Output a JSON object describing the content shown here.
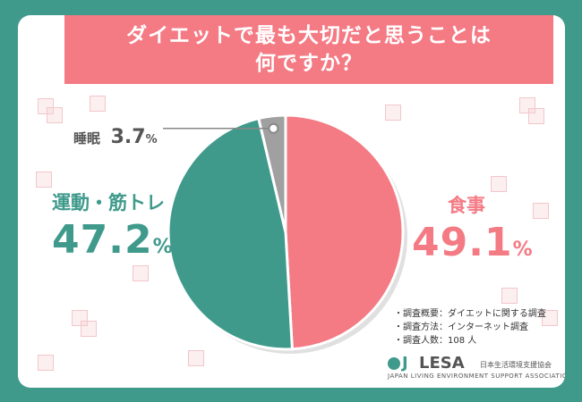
{
  "title": "ダイエットで最も大切だと思うことは\n何ですか？",
  "chart_data": {
    "type": "pie",
    "slices": [
      {
        "name": "食事",
        "value": 49.1,
        "color": "#f47a84"
      },
      {
        "name": "運動・筋トレ",
        "value": 47.2,
        "color": "#3f9a8c"
      },
      {
        "name": "睡眠",
        "value": 3.7,
        "color": "#a0a0a0"
      }
    ],
    "value_suffix": "%"
  },
  "notes": [
    "・調査概要：ダイエットに関する調査",
    "・調査方法：インターネット調査",
    "・調査人数：108 人"
  ],
  "logo": {
    "j": "J",
    "name": "LESA",
    "jp": "日本生活環境支援協会",
    "en": "JAPAN LIVING ENVIRONMENT SUPPORT ASSOCIATION"
  },
  "colors": {
    "frame": "#3f9a8c",
    "title_bg": "#f47a84",
    "teal": "#3f9a8c",
    "pink": "#f47a84",
    "gray": "#a0a0a0"
  }
}
